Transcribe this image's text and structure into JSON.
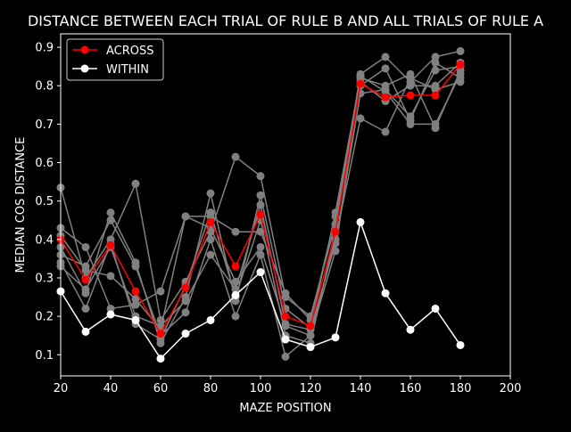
{
  "chart_data": {
    "type": "line",
    "title": "DISTANCE BETWEEN EACH TRIAL OF RULE B AND ALL TRIALS OF RULE A",
    "xlabel": "MAZE POSITION",
    "ylabel": "MEDIAN COS DISTANCE",
    "xlim": [
      20,
      200
    ],
    "ylim": [
      0.045,
      0.935
    ],
    "xticks": [
      20,
      40,
      60,
      80,
      100,
      120,
      140,
      160,
      180,
      200
    ],
    "yticks": [
      0.1,
      0.2,
      0.3,
      0.4,
      0.5,
      0.6,
      0.7,
      0.8,
      0.9
    ],
    "grid": false,
    "legend_position": "top-left",
    "colors": {
      "background": "#000000",
      "foreground": "#ffffff",
      "across": "#ff0000",
      "within": "#ffffff",
      "trials": "#808080"
    },
    "x": [
      20,
      30,
      40,
      50,
      60,
      70,
      80,
      90,
      100,
      110,
      120,
      130,
      140,
      150,
      160,
      170,
      180
    ],
    "trial_series": [
      {
        "values": [
          0.535,
          0.3,
          0.4,
          0.545,
          0.19,
          0.29,
          0.42,
          0.615,
          0.565,
          0.25,
          0.2,
          0.44,
          0.83,
          0.875,
          0.81,
          0.875,
          0.89
        ]
      },
      {
        "values": [
          0.43,
          0.38,
          0.22,
          0.23,
          0.265,
          0.46,
          0.46,
          0.42,
          0.42,
          0.26,
          0.19,
          0.46,
          0.8,
          0.845,
          0.71,
          0.86,
          0.82
        ]
      },
      {
        "values": [
          0.38,
          0.26,
          0.47,
          0.34,
          0.13,
          0.25,
          0.52,
          0.24,
          0.515,
          0.22,
          0.17,
          0.47,
          0.82,
          0.8,
          0.83,
          0.69,
          0.84
        ]
      },
      {
        "values": [
          0.36,
          0.33,
          0.45,
          0.33,
          0.15,
          0.21,
          0.4,
          0.2,
          0.36,
          0.095,
          0.15,
          0.4,
          0.715,
          0.68,
          0.82,
          0.79,
          0.81
        ]
      },
      {
        "values": [
          0.33,
          0.27,
          0.38,
          0.2,
          0.175,
          0.24,
          0.36,
          0.27,
          0.49,
          0.18,
          0.165,
          0.39,
          0.78,
          0.79,
          0.72,
          0.84,
          0.85
        ]
      },
      {
        "values": [
          0.41,
          0.32,
          0.305,
          0.245,
          0.165,
          0.46,
          0.43,
          0.29,
          0.38,
          0.175,
          0.15,
          0.37,
          0.825,
          0.785,
          0.7,
          0.7,
          0.83
        ]
      },
      {
        "values": [
          0.34,
          0.22,
          0.39,
          0.18,
          0.14,
          0.28,
          0.47,
          0.25,
          0.45,
          0.15,
          0.13,
          0.42,
          0.81,
          0.76,
          0.8,
          0.8,
          0.86
        ]
      }
    ],
    "series": [
      {
        "name": "ACROSS",
        "values": [
          0.4,
          0.295,
          0.385,
          0.265,
          0.155,
          0.275,
          0.445,
          0.33,
          0.465,
          0.2,
          0.175,
          0.42,
          0.805,
          0.77,
          0.775,
          0.775,
          0.855
        ]
      },
      {
        "name": "WITHIN",
        "values": [
          0.265,
          0.16,
          0.205,
          0.19,
          0.09,
          0.155,
          0.19,
          0.255,
          0.315,
          0.14,
          0.12,
          0.145,
          0.445,
          0.26,
          0.165,
          0.22,
          0.125
        ]
      }
    ]
  }
}
